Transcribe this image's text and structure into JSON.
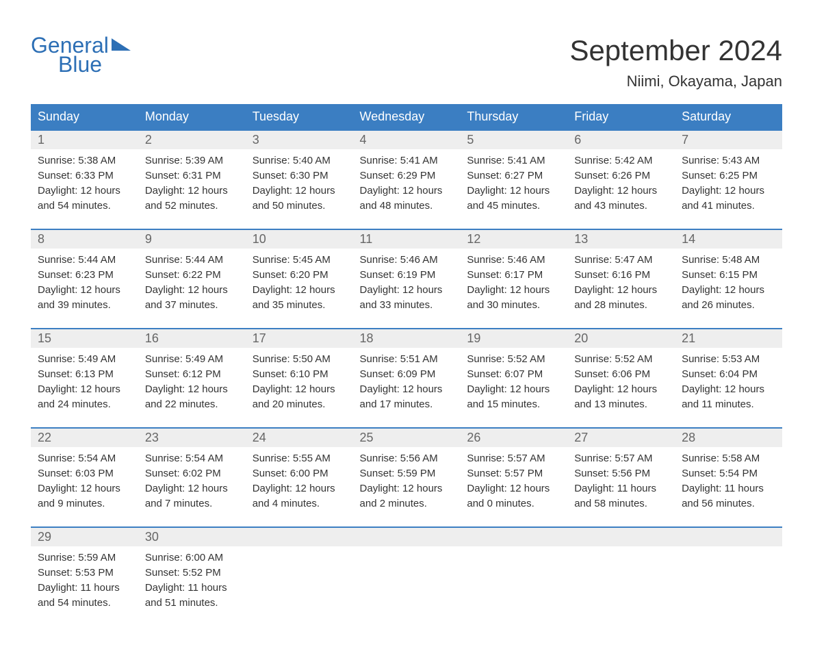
{
  "logo": {
    "line1": "General",
    "line2": "Blue"
  },
  "header": {
    "month_title": "September 2024",
    "location": "Niimi, Okayama, Japan"
  },
  "calendar": {
    "columns": [
      "Sunday",
      "Monday",
      "Tuesday",
      "Wednesday",
      "Thursday",
      "Friday",
      "Saturday"
    ],
    "header_bg_color": "#3b7ec2",
    "header_text_color": "#ffffff",
    "day_number_bg": "#eeeeee",
    "border_color": "#3b7ec2",
    "weeks": [
      [
        {
          "day": "1",
          "sunrise": "Sunrise: 5:38 AM",
          "sunset": "Sunset: 6:33 PM",
          "daylight1": "Daylight: 12 hours",
          "daylight2": "and 54 minutes."
        },
        {
          "day": "2",
          "sunrise": "Sunrise: 5:39 AM",
          "sunset": "Sunset: 6:31 PM",
          "daylight1": "Daylight: 12 hours",
          "daylight2": "and 52 minutes."
        },
        {
          "day": "3",
          "sunrise": "Sunrise: 5:40 AM",
          "sunset": "Sunset: 6:30 PM",
          "daylight1": "Daylight: 12 hours",
          "daylight2": "and 50 minutes."
        },
        {
          "day": "4",
          "sunrise": "Sunrise: 5:41 AM",
          "sunset": "Sunset: 6:29 PM",
          "daylight1": "Daylight: 12 hours",
          "daylight2": "and 48 minutes."
        },
        {
          "day": "5",
          "sunrise": "Sunrise: 5:41 AM",
          "sunset": "Sunset: 6:27 PM",
          "daylight1": "Daylight: 12 hours",
          "daylight2": "and 45 minutes."
        },
        {
          "day": "6",
          "sunrise": "Sunrise: 5:42 AM",
          "sunset": "Sunset: 6:26 PM",
          "daylight1": "Daylight: 12 hours",
          "daylight2": "and 43 minutes."
        },
        {
          "day": "7",
          "sunrise": "Sunrise: 5:43 AM",
          "sunset": "Sunset: 6:25 PM",
          "daylight1": "Daylight: 12 hours",
          "daylight2": "and 41 minutes."
        }
      ],
      [
        {
          "day": "8",
          "sunrise": "Sunrise: 5:44 AM",
          "sunset": "Sunset: 6:23 PM",
          "daylight1": "Daylight: 12 hours",
          "daylight2": "and 39 minutes."
        },
        {
          "day": "9",
          "sunrise": "Sunrise: 5:44 AM",
          "sunset": "Sunset: 6:22 PM",
          "daylight1": "Daylight: 12 hours",
          "daylight2": "and 37 minutes."
        },
        {
          "day": "10",
          "sunrise": "Sunrise: 5:45 AM",
          "sunset": "Sunset: 6:20 PM",
          "daylight1": "Daylight: 12 hours",
          "daylight2": "and 35 minutes."
        },
        {
          "day": "11",
          "sunrise": "Sunrise: 5:46 AM",
          "sunset": "Sunset: 6:19 PM",
          "daylight1": "Daylight: 12 hours",
          "daylight2": "and 33 minutes."
        },
        {
          "day": "12",
          "sunrise": "Sunrise: 5:46 AM",
          "sunset": "Sunset: 6:17 PM",
          "daylight1": "Daylight: 12 hours",
          "daylight2": "and 30 minutes."
        },
        {
          "day": "13",
          "sunrise": "Sunrise: 5:47 AM",
          "sunset": "Sunset: 6:16 PM",
          "daylight1": "Daylight: 12 hours",
          "daylight2": "and 28 minutes."
        },
        {
          "day": "14",
          "sunrise": "Sunrise: 5:48 AM",
          "sunset": "Sunset: 6:15 PM",
          "daylight1": "Daylight: 12 hours",
          "daylight2": "and 26 minutes."
        }
      ],
      [
        {
          "day": "15",
          "sunrise": "Sunrise: 5:49 AM",
          "sunset": "Sunset: 6:13 PM",
          "daylight1": "Daylight: 12 hours",
          "daylight2": "and 24 minutes."
        },
        {
          "day": "16",
          "sunrise": "Sunrise: 5:49 AM",
          "sunset": "Sunset: 6:12 PM",
          "daylight1": "Daylight: 12 hours",
          "daylight2": "and 22 minutes."
        },
        {
          "day": "17",
          "sunrise": "Sunrise: 5:50 AM",
          "sunset": "Sunset: 6:10 PM",
          "daylight1": "Daylight: 12 hours",
          "daylight2": "and 20 minutes."
        },
        {
          "day": "18",
          "sunrise": "Sunrise: 5:51 AM",
          "sunset": "Sunset: 6:09 PM",
          "daylight1": "Daylight: 12 hours",
          "daylight2": "and 17 minutes."
        },
        {
          "day": "19",
          "sunrise": "Sunrise: 5:52 AM",
          "sunset": "Sunset: 6:07 PM",
          "daylight1": "Daylight: 12 hours",
          "daylight2": "and 15 minutes."
        },
        {
          "day": "20",
          "sunrise": "Sunrise: 5:52 AM",
          "sunset": "Sunset: 6:06 PM",
          "daylight1": "Daylight: 12 hours",
          "daylight2": "and 13 minutes."
        },
        {
          "day": "21",
          "sunrise": "Sunrise: 5:53 AM",
          "sunset": "Sunset: 6:04 PM",
          "daylight1": "Daylight: 12 hours",
          "daylight2": "and 11 minutes."
        }
      ],
      [
        {
          "day": "22",
          "sunrise": "Sunrise: 5:54 AM",
          "sunset": "Sunset: 6:03 PM",
          "daylight1": "Daylight: 12 hours",
          "daylight2": "and 9 minutes."
        },
        {
          "day": "23",
          "sunrise": "Sunrise: 5:54 AM",
          "sunset": "Sunset: 6:02 PM",
          "daylight1": "Daylight: 12 hours",
          "daylight2": "and 7 minutes."
        },
        {
          "day": "24",
          "sunrise": "Sunrise: 5:55 AM",
          "sunset": "Sunset: 6:00 PM",
          "daylight1": "Daylight: 12 hours",
          "daylight2": "and 4 minutes."
        },
        {
          "day": "25",
          "sunrise": "Sunrise: 5:56 AM",
          "sunset": "Sunset: 5:59 PM",
          "daylight1": "Daylight: 12 hours",
          "daylight2": "and 2 minutes."
        },
        {
          "day": "26",
          "sunrise": "Sunrise: 5:57 AM",
          "sunset": "Sunset: 5:57 PM",
          "daylight1": "Daylight: 12 hours",
          "daylight2": "and 0 minutes."
        },
        {
          "day": "27",
          "sunrise": "Sunrise: 5:57 AM",
          "sunset": "Sunset: 5:56 PM",
          "daylight1": "Daylight: 11 hours",
          "daylight2": "and 58 minutes."
        },
        {
          "day": "28",
          "sunrise": "Sunrise: 5:58 AM",
          "sunset": "Sunset: 5:54 PM",
          "daylight1": "Daylight: 11 hours",
          "daylight2": "and 56 minutes."
        }
      ],
      [
        {
          "day": "29",
          "sunrise": "Sunrise: 5:59 AM",
          "sunset": "Sunset: 5:53 PM",
          "daylight1": "Daylight: 11 hours",
          "daylight2": "and 54 minutes."
        },
        {
          "day": "30",
          "sunrise": "Sunrise: 6:00 AM",
          "sunset": "Sunset: 5:52 PM",
          "daylight1": "Daylight: 11 hours",
          "daylight2": "and 51 minutes."
        },
        null,
        null,
        null,
        null,
        null
      ]
    ]
  }
}
